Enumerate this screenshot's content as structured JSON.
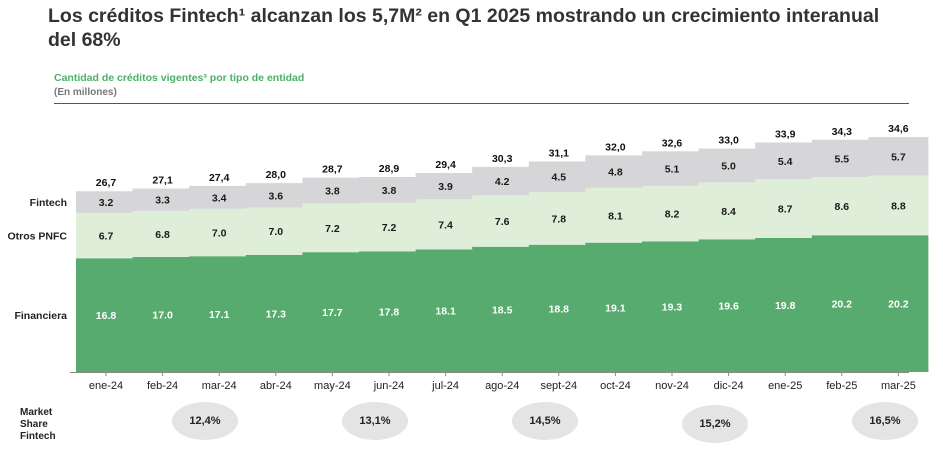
{
  "header": {
    "title": "Los créditos Fintech¹ alcanzan los 5,7M² en Q1 2025 mostrando un crecimiento interanual del 68%",
    "subtitle": "Cantidad de créditos vigentes³ por tipo de entidad",
    "unit": "(En millones)"
  },
  "chart_data": {
    "type": "bar",
    "stacked": true,
    "title": "Cantidad de créditos vigentes³ por tipo de entidad",
    "ylabel": "(En millones)",
    "categories": [
      "ene-24",
      "feb-24",
      "mar-24",
      "abr-24",
      "may-24",
      "jun-24",
      "jul-24",
      "ago-24",
      "sept-24",
      "oct-24",
      "nov-24",
      "dic-24",
      "ene-25",
      "feb-25",
      "mar-25"
    ],
    "series": [
      {
        "name": "Financiera",
        "color": "#57ab6e",
        "values": [
          16.8,
          17.0,
          17.1,
          17.3,
          17.7,
          17.8,
          18.1,
          18.5,
          18.8,
          19.1,
          19.3,
          19.6,
          19.8,
          20.2,
          20.2
        ]
      },
      {
        "name": "Otros PNFC",
        "color": "#deeed8",
        "values": [
          6.7,
          6.8,
          7.0,
          7.0,
          7.2,
          7.2,
          7.4,
          7.6,
          7.8,
          8.1,
          8.2,
          8.4,
          8.7,
          8.6,
          8.8
        ]
      },
      {
        "name": "Fintech",
        "color": "#d6d6d8",
        "values": [
          3.2,
          3.3,
          3.4,
          3.6,
          3.8,
          3.8,
          3.9,
          4.2,
          4.5,
          4.8,
          5.1,
          5.0,
          5.4,
          5.5,
          5.7
        ]
      }
    ],
    "totals": [
      "26,7",
      "27,1",
      "27,4",
      "28,0",
      "28,7",
      "28,9",
      "29,4",
      "30,3",
      "31,1",
      "32,0",
      "32,6",
      "33,0",
      "33,9",
      "34,3",
      "34,6"
    ],
    "segment_labels": [
      [
        "16.8",
        "17.0",
        "17.1",
        "17.3",
        "17.7",
        "17.8",
        "18.1",
        "18.5",
        "18.8",
        "19.1",
        "19.3",
        "19.6",
        "19.8",
        "20.2",
        "20.2"
      ],
      [
        "6.7",
        "6.8",
        "7.0",
        "7.0",
        "7.2",
        "7.2",
        "7.4",
        "7.6",
        "7.8",
        "8.1",
        "8.2",
        "8.4",
        "8.7",
        "8.6",
        "8.8"
      ],
      [
        "3.2",
        "3.3",
        "3.4",
        "3.6",
        "3.8",
        "3.8",
        "3.9",
        "4.2",
        "4.5",
        "4.8",
        "5.1",
        "5.0",
        "5.4",
        "5.5",
        "5.7"
      ]
    ],
    "ylim": [
      0,
      36
    ],
    "grid": false
  },
  "market_share": {
    "label_lines": [
      "Market",
      "Share",
      "Fintech"
    ],
    "values": [
      "12,4%",
      "13,1%",
      "14,5%",
      "15,2%",
      "16,5%"
    ],
    "value_months": [
      "mar-24",
      "jun-24",
      "sept-24",
      "dic-24",
      "mar-25"
    ]
  }
}
